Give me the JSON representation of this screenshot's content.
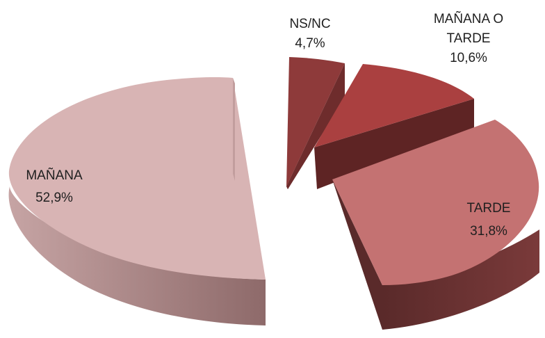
{
  "chart_data": {
    "type": "pie",
    "style": "3d-exploded",
    "slices": [
      {
        "label": "MAÑANA",
        "value_label": "52,9%",
        "value": 52.9,
        "top_color": "#d8b4b4",
        "side_color": "#a88484"
      },
      {
        "label": "NS/NC",
        "value_label": "4,7%",
        "value": 4.7,
        "top_color": "#8e3a3a",
        "side_color": "#5e2424"
      },
      {
        "label": "MAÑANA O TARDE",
        "label_lines": [
          "MAÑANA O",
          "TARDE"
        ],
        "value_label": "10,6%",
        "value": 10.6,
        "top_color": "#aa4040",
        "side_color": "#6a2828"
      },
      {
        "label": "TARDE",
        "value_label": "31,8%",
        "value": 31.8,
        "top_color": "#c47272",
        "side_color": "#6e3434"
      }
    ]
  }
}
